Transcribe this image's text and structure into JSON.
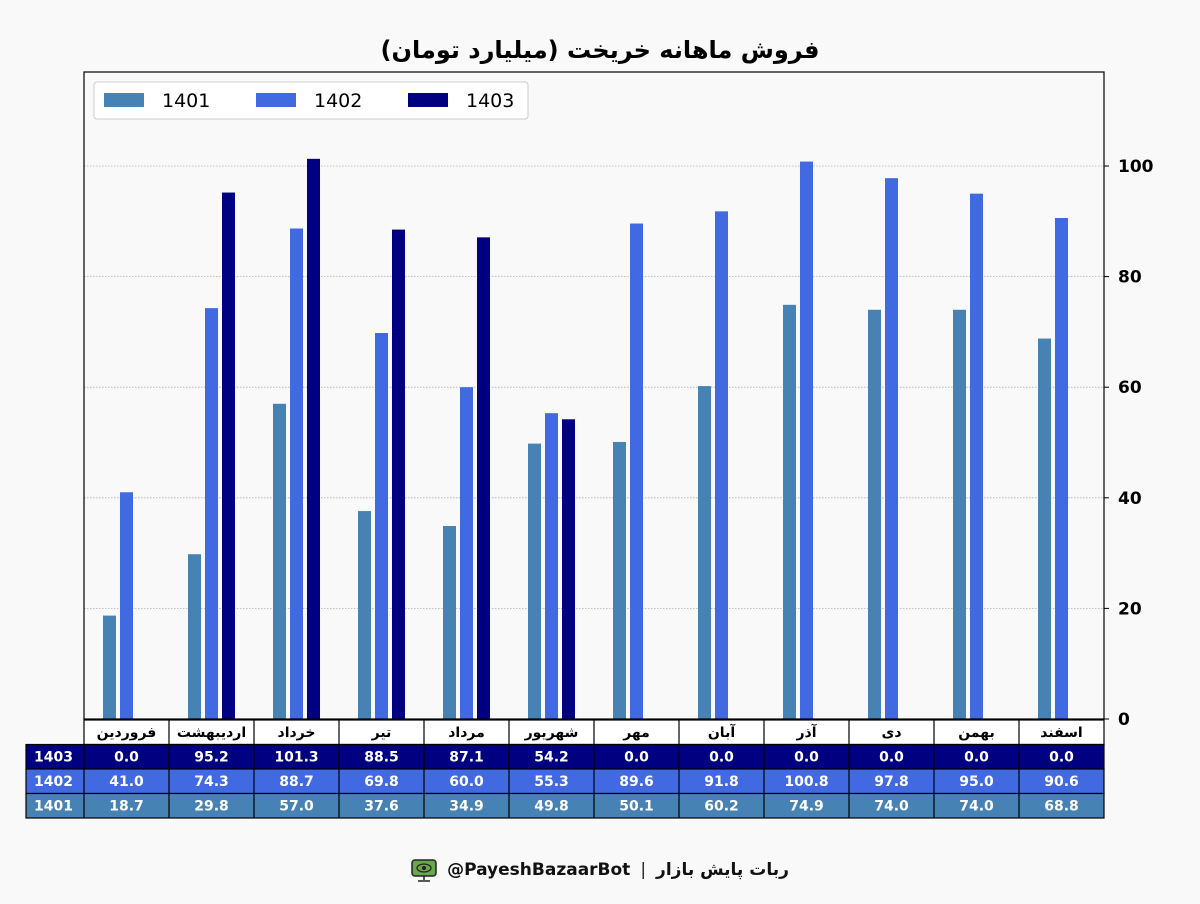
{
  "chart_data": {
    "type": "bar",
    "title": "فروش ماهانه خریخت (میلیارد تومان)",
    "categories": [
      "فروردین",
      "اردیبهشت",
      "خرداد",
      "تیر",
      "مرداد",
      "شهریور",
      "مهر",
      "آبان",
      "آذر",
      "دی",
      "بهمن",
      "اسفند"
    ],
    "series": [
      {
        "name": "1401",
        "color": "#4682b4",
        "values": [
          18.7,
          29.8,
          57.0,
          37.6,
          34.9,
          49.8,
          50.1,
          60.2,
          74.9,
          74.0,
          74.0,
          68.8
        ]
      },
      {
        "name": "1402",
        "color": "#4169e1",
        "values": [
          41.0,
          74.3,
          88.7,
          69.8,
          60.0,
          55.3,
          89.6,
          91.8,
          100.8,
          97.8,
          95.0,
          90.6
        ]
      },
      {
        "name": "1403",
        "color": "#000080",
        "values": [
          0.0,
          95.2,
          101.3,
          88.5,
          87.1,
          54.2,
          0.0,
          0.0,
          0.0,
          0.0,
          0.0,
          0.0
        ]
      }
    ],
    "ylim": [
      0,
      117
    ],
    "yticks": [
      0,
      20,
      40,
      60,
      80,
      100
    ],
    "y_axis_side": "right",
    "grid": "horizontal dotted",
    "legend_placement": "top-left",
    "table_row_order": [
      "1403",
      "1402",
      "1401"
    ]
  },
  "footer": {
    "bot_name": "ربات پایش بازار",
    "separator": "|",
    "handle": "@PayeshBazaarBot",
    "icon": "monitor-eye-icon"
  }
}
